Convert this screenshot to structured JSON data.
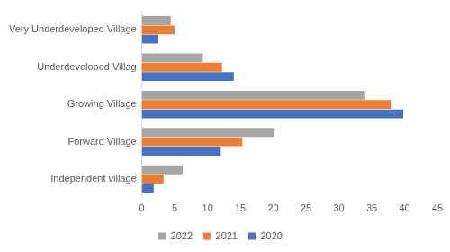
{
  "chart_data": {
    "type": "bar",
    "orientation": "horizontal",
    "categories": [
      "Very Underdeveloped Village",
      "Underdeveloped Villag",
      "Growing Village",
      "Forward Village",
      "Independent village"
    ],
    "series": [
      {
        "name": "2022",
        "color": "#a5a5a5",
        "values": [
          4.4,
          9.3,
          34,
          20.2,
          6.2
        ]
      },
      {
        "name": "2021",
        "color": "#ed7d31",
        "values": [
          5,
          12.2,
          38,
          15.3,
          3.3
        ]
      },
      {
        "name": "2020",
        "color": "#4472c4",
        "values": [
          2.5,
          14,
          39.8,
          12,
          1.8
        ]
      }
    ],
    "xlim": [
      0,
      45
    ],
    "xticks": [
      0,
      5,
      10,
      15,
      20,
      25,
      30,
      35,
      40,
      45
    ],
    "grid": false,
    "legend": "bottom"
  }
}
